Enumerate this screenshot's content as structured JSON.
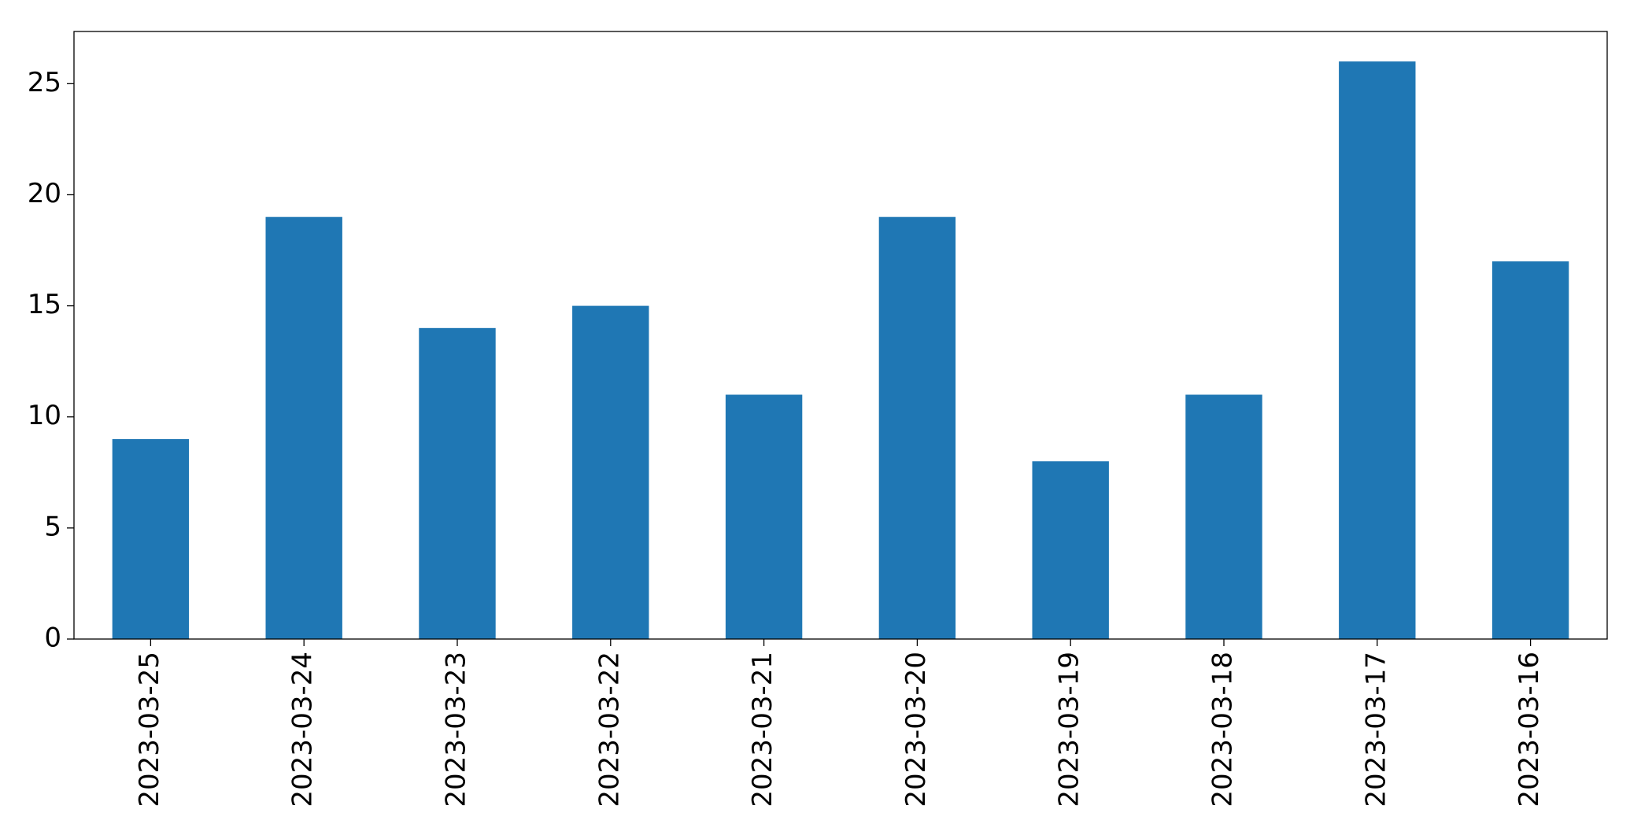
{
  "chart_data": {
    "type": "bar",
    "categories": [
      "2023-03-25",
      "2023-03-24",
      "2023-03-23",
      "2023-03-22",
      "2023-03-21",
      "2023-03-20",
      "2023-03-19",
      "2023-03-18",
      "2023-03-17",
      "2023-03-16"
    ],
    "values": [
      9,
      19,
      14,
      15,
      11,
      19,
      8,
      11,
      26,
      17
    ],
    "color": "#1f77b4",
    "ylim": [
      0,
      27.35
    ],
    "yticks": [
      0,
      5,
      10,
      15,
      20,
      25
    ],
    "grid": false
  }
}
